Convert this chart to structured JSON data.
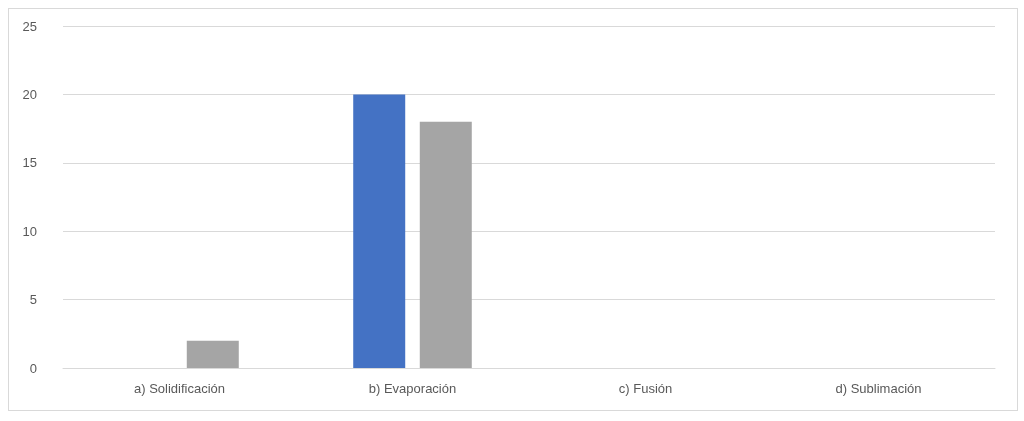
{
  "chart_data": {
    "type": "bar",
    "categories": [
      "a) Solidificación",
      "b) Evaporación",
      "c) Fusión",
      "d) Sublimación"
    ],
    "series": [
      {
        "color": "#4472c4",
        "values": [
          0,
          20,
          0,
          0
        ]
      },
      {
        "color": "#a5a5a5",
        "values": [
          2,
          18,
          0,
          0
        ]
      }
    ],
    "ylim": [
      0,
      25
    ],
    "yticks": [
      0,
      5,
      10,
      15,
      20,
      25
    ],
    "grid": "y"
  }
}
